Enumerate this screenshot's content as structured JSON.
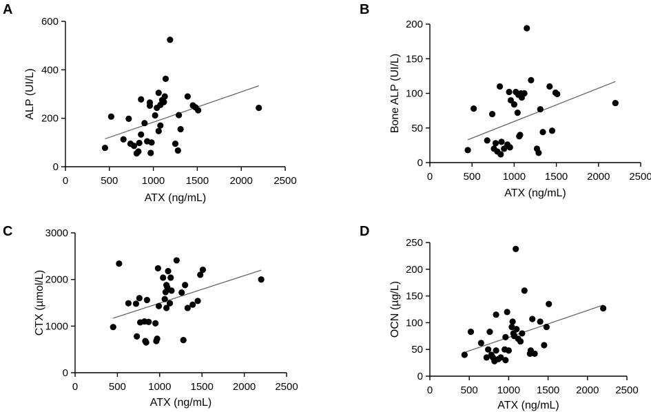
{
  "chart_data": [
    {
      "panel": "A",
      "type": "scatter",
      "xlabel": "ATX (ng/mL)",
      "ylabel": "ALP (UI/L)",
      "xlim": [
        0,
        2500
      ],
      "ylim": [
        0,
        600
      ],
      "xticks": [
        0,
        500,
        1000,
        1500,
        2000,
        2500
      ],
      "yticks": [
        0,
        200,
        400,
        600
      ],
      "trendline": {
        "x": [
          450,
          2200
        ],
        "y": [
          115,
          334
        ]
      },
      "points": [
        {
          "x": 450,
          "y": 78
        },
        {
          "x": 520,
          "y": 207
        },
        {
          "x": 660,
          "y": 113
        },
        {
          "x": 720,
          "y": 198
        },
        {
          "x": 740,
          "y": 95
        },
        {
          "x": 780,
          "y": 86
        },
        {
          "x": 810,
          "y": 55
        },
        {
          "x": 830,
          "y": 63
        },
        {
          "x": 840,
          "y": 98
        },
        {
          "x": 860,
          "y": 278
        },
        {
          "x": 860,
          "y": 133
        },
        {
          "x": 900,
          "y": 180
        },
        {
          "x": 930,
          "y": 105
        },
        {
          "x": 960,
          "y": 265
        },
        {
          "x": 960,
          "y": 252
        },
        {
          "x": 970,
          "y": 57
        },
        {
          "x": 980,
          "y": 100
        },
        {
          "x": 1020,
          "y": 212
        },
        {
          "x": 1040,
          "y": 243
        },
        {
          "x": 1060,
          "y": 305
        },
        {
          "x": 1060,
          "y": 147
        },
        {
          "x": 1080,
          "y": 170
        },
        {
          "x": 1080,
          "y": 255
        },
        {
          "x": 1100,
          "y": 275
        },
        {
          "x": 1120,
          "y": 267
        },
        {
          "x": 1130,
          "y": 290
        },
        {
          "x": 1140,
          "y": 363
        },
        {
          "x": 1190,
          "y": 524
        },
        {
          "x": 1250,
          "y": 95
        },
        {
          "x": 1280,
          "y": 67
        },
        {
          "x": 1290,
          "y": 213
        },
        {
          "x": 1310,
          "y": 155
        },
        {
          "x": 1390,
          "y": 290
        },
        {
          "x": 1450,
          "y": 253
        },
        {
          "x": 1480,
          "y": 245
        },
        {
          "x": 1510,
          "y": 233
        },
        {
          "x": 2200,
          "y": 243
        }
      ]
    },
    {
      "panel": "B",
      "type": "scatter",
      "xlabel": "ATX (ng/mL)",
      "ylabel": "Bone ALP (UI/L)",
      "xlim": [
        0,
        2500
      ],
      "ylim": [
        0,
        200
      ],
      "xticks": [
        0,
        500,
        1000,
        1500,
        2000,
        2500
      ],
      "yticks": [
        0,
        50,
        100,
        150,
        200
      ],
      "trendline": {
        "x": [
          450,
          2200
        ],
        "y": [
          33,
          117
        ]
      },
      "points": [
        {
          "x": 450,
          "y": 18
        },
        {
          "x": 520,
          "y": 78
        },
        {
          "x": 680,
          "y": 32
        },
        {
          "x": 740,
          "y": 70
        },
        {
          "x": 760,
          "y": 20
        },
        {
          "x": 780,
          "y": 28
        },
        {
          "x": 800,
          "y": 16
        },
        {
          "x": 830,
          "y": 110
        },
        {
          "x": 840,
          "y": 12
        },
        {
          "x": 850,
          "y": 30
        },
        {
          "x": 880,
          "y": 20
        },
        {
          "x": 920,
          "y": 26
        },
        {
          "x": 940,
          "y": 102
        },
        {
          "x": 950,
          "y": 22
        },
        {
          "x": 960,
          "y": 90
        },
        {
          "x": 1000,
          "y": 84
        },
        {
          "x": 1020,
          "y": 102
        },
        {
          "x": 1040,
          "y": 72
        },
        {
          "x": 1050,
          "y": 98
        },
        {
          "x": 1060,
          "y": 38
        },
        {
          "x": 1070,
          "y": 40
        },
        {
          "x": 1080,
          "y": 100
        },
        {
          "x": 1090,
          "y": 94
        },
        {
          "x": 1120,
          "y": 100
        },
        {
          "x": 1150,
          "y": 194
        },
        {
          "x": 1200,
          "y": 119
        },
        {
          "x": 1270,
          "y": 20
        },
        {
          "x": 1290,
          "y": 14
        },
        {
          "x": 1310,
          "y": 77
        },
        {
          "x": 1340,
          "y": 44
        },
        {
          "x": 1420,
          "y": 110
        },
        {
          "x": 1450,
          "y": 46
        },
        {
          "x": 1490,
          "y": 101
        },
        {
          "x": 1510,
          "y": 99
        },
        {
          "x": 2200,
          "y": 86
        }
      ]
    },
    {
      "panel": "C",
      "type": "scatter",
      "xlabel": "ATX (ng/mL)",
      "ylabel": "CTX (µmol/L)",
      "xlim": [
        0,
        2500
      ],
      "ylim": [
        0,
        3000
      ],
      "xticks": [
        0,
        500,
        1000,
        1500,
        2000,
        2500
      ],
      "yticks": [
        0,
        1000,
        2000,
        3000
      ],
      "trendline": {
        "x": [
          450,
          2200
        ],
        "y": [
          1170,
          2200
        ]
      },
      "points": [
        {
          "x": 450,
          "y": 980
        },
        {
          "x": 520,
          "y": 2340
        },
        {
          "x": 630,
          "y": 1490
        },
        {
          "x": 720,
          "y": 1480
        },
        {
          "x": 730,
          "y": 780
        },
        {
          "x": 760,
          "y": 1600
        },
        {
          "x": 770,
          "y": 1080
        },
        {
          "x": 820,
          "y": 1100
        },
        {
          "x": 830,
          "y": 680
        },
        {
          "x": 840,
          "y": 650
        },
        {
          "x": 850,
          "y": 1560
        },
        {
          "x": 870,
          "y": 1090
        },
        {
          "x": 950,
          "y": 1060
        },
        {
          "x": 960,
          "y": 680
        },
        {
          "x": 970,
          "y": 730
        },
        {
          "x": 980,
          "y": 2240
        },
        {
          "x": 990,
          "y": 1430
        },
        {
          "x": 1040,
          "y": 2040
        },
        {
          "x": 1060,
          "y": 1580
        },
        {
          "x": 1070,
          "y": 1730
        },
        {
          "x": 1080,
          "y": 1880
        },
        {
          "x": 1080,
          "y": 1390
        },
        {
          "x": 1090,
          "y": 1830
        },
        {
          "x": 1100,
          "y": 2180
        },
        {
          "x": 1120,
          "y": 1490
        },
        {
          "x": 1130,
          "y": 2040
        },
        {
          "x": 1140,
          "y": 1760
        },
        {
          "x": 1200,
          "y": 2410
        },
        {
          "x": 1260,
          "y": 1720
        },
        {
          "x": 1280,
          "y": 700
        },
        {
          "x": 1300,
          "y": 1880
        },
        {
          "x": 1330,
          "y": 1390
        },
        {
          "x": 1390,
          "y": 1460
        },
        {
          "x": 1450,
          "y": 1540
        },
        {
          "x": 1480,
          "y": 2100
        },
        {
          "x": 1510,
          "y": 2210
        },
        {
          "x": 2200,
          "y": 2000
        }
      ]
    },
    {
      "panel": "D",
      "type": "scatter",
      "xlabel": "ATX (ng/mL)",
      "ylabel": "OCN (µg/L)",
      "xlim": [
        0,
        2500
      ],
      "ylim": [
        0,
        250
      ],
      "xticks": [
        0,
        500,
        1000,
        1500,
        2000,
        2500
      ],
      "yticks": [
        0,
        50,
        100,
        150,
        200,
        250
      ],
      "trendline": {
        "x": [
          450,
          2200
        ],
        "y": [
          45,
          133
        ]
      },
      "points": [
        {
          "x": 440,
          "y": 40
        },
        {
          "x": 520,
          "y": 83
        },
        {
          "x": 650,
          "y": 62
        },
        {
          "x": 720,
          "y": 35
        },
        {
          "x": 740,
          "y": 50
        },
        {
          "x": 760,
          "y": 83
        },
        {
          "x": 780,
          "y": 40
        },
        {
          "x": 800,
          "y": 35
        },
        {
          "x": 820,
          "y": 28
        },
        {
          "x": 840,
          "y": 115
        },
        {
          "x": 840,
          "y": 48
        },
        {
          "x": 870,
          "y": 32
        },
        {
          "x": 900,
          "y": 35
        },
        {
          "x": 950,
          "y": 50
        },
        {
          "x": 960,
          "y": 30
        },
        {
          "x": 960,
          "y": 73
        },
        {
          "x": 980,
          "y": 120
        },
        {
          "x": 1000,
          "y": 48
        },
        {
          "x": 1040,
          "y": 92
        },
        {
          "x": 1050,
          "y": 102
        },
        {
          "x": 1060,
          "y": 80
        },
        {
          "x": 1070,
          "y": 75
        },
        {
          "x": 1090,
          "y": 238
        },
        {
          "x": 1100,
          "y": 88
        },
        {
          "x": 1120,
          "y": 70
        },
        {
          "x": 1150,
          "y": 65
        },
        {
          "x": 1170,
          "y": 80
        },
        {
          "x": 1200,
          "y": 160
        },
        {
          "x": 1270,
          "y": 42
        },
        {
          "x": 1280,
          "y": 48
        },
        {
          "x": 1300,
          "y": 107
        },
        {
          "x": 1330,
          "y": 42
        },
        {
          "x": 1400,
          "y": 102
        },
        {
          "x": 1450,
          "y": 58
        },
        {
          "x": 1480,
          "y": 92
        },
        {
          "x": 1510,
          "y": 135
        },
        {
          "x": 2200,
          "y": 127
        }
      ]
    }
  ]
}
